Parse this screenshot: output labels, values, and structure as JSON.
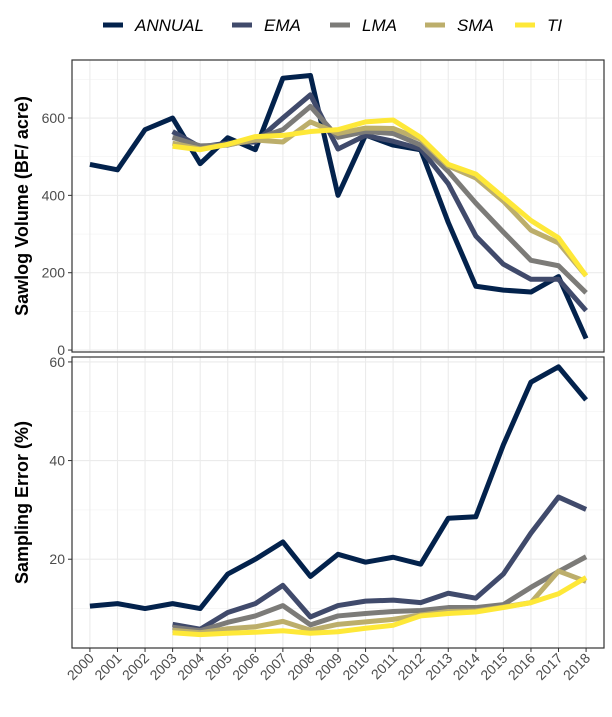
{
  "chart_data": {
    "type": "line",
    "x": [
      2000,
      2001,
      2002,
      2003,
      2004,
      2005,
      2006,
      2007,
      2008,
      2009,
      2010,
      2011,
      2012,
      2013,
      2014,
      2015,
      2016,
      2017,
      2018
    ],
    "legend": {
      "position": "top",
      "items": [
        {
          "name": "ANNUAL",
          "color": "#03224c"
        },
        {
          "name": "EMA",
          "color": "#404a6b"
        },
        {
          "name": "LMA",
          "color": "#7c7b78"
        },
        {
          "name": "SMA",
          "color": "#bcae6b"
        },
        {
          "name": "TI",
          "color": "#fee838"
        }
      ]
    },
    "grid": true,
    "panels": [
      {
        "ylabel": "Sawlog Volume (BF/ acre)",
        "ylim": [
          -5,
          750
        ],
        "yticks": [
          0,
          200,
          400,
          600
        ],
        "series": [
          {
            "name": "ANNUAL",
            "color": "#03224c",
            "values": [
              480,
              466,
              570,
              600,
              482,
              549,
              518,
              703,
              710,
              400,
              556,
              530,
              518,
              330,
              165,
              155,
              150,
              190,
              30
            ]
          },
          {
            "name": "EMA",
            "color": "#404a6b",
            "values": [
              null,
              null,
              null,
              565,
              525,
              535,
              538,
              600,
              660,
              520,
              555,
              540,
              520,
              430,
              295,
              222,
              183,
              183,
              102
            ]
          },
          {
            "name": "LMA",
            "color": "#7c7b78",
            "values": [
              null,
              null,
              null,
              550,
              528,
              530,
              545,
              570,
              630,
              550,
              565,
              560,
              530,
              462,
              380,
              305,
              232,
              218,
              148
            ]
          },
          {
            "name": "SMA",
            "color": "#bcae6b",
            "values": [
              null,
              null,
              null,
              535,
              520,
              531,
              543,
              538,
              590,
              560,
              574,
              573,
              545,
              476,
              445,
              385,
              310,
              277,
              192
            ]
          },
          {
            "name": "TI",
            "color": "#fee838",
            "values": [
              null,
              null,
              null,
              527,
              518,
              532,
              552,
              555,
              565,
              570,
              590,
              595,
              550,
              480,
              455,
              395,
              335,
              290,
              192
            ]
          }
        ]
      },
      {
        "ylabel": "Sampling Error (%)",
        "ylim": [
          2,
          61
        ],
        "yticks": [
          20,
          40,
          60
        ],
        "series": [
          {
            "name": "ANNUAL",
            "color": "#03224c",
            "values": [
              10.5,
              11,
              10,
              11,
              10,
              17,
              20,
              23.5,
              16.5,
              21,
              19.4,
              20.4,
              19,
              28.3,
              28.6,
              43.2,
              55.9,
              59,
              52.3
            ]
          },
          {
            "name": "EMA",
            "color": "#404a6b",
            "values": [
              null,
              null,
              null,
              6.8,
              5.8,
              9.2,
              11,
              14.7,
              8.3,
              10.6,
              11.5,
              11.7,
              11.2,
              13.1,
              12.1,
              17,
              25.3,
              32.6,
              30.1
            ]
          },
          {
            "name": "LMA",
            "color": "#7c7b78",
            "values": [
              null,
              null,
              null,
              6.2,
              5.5,
              7.2,
              8.5,
              10.6,
              6.7,
              8.5,
              9,
              9.4,
              9.6,
              10.2,
              10.2,
              10.8,
              14.3,
              17.5,
              20.5
            ]
          },
          {
            "name": "SMA",
            "color": "#bcae6b",
            "values": [
              null,
              null,
              null,
              5.6,
              5.1,
              5.9,
              6.3,
              7.4,
              5.6,
              6.8,
              7.3,
              7.8,
              8.7,
              9.4,
              9.5,
              10.3,
              11.2,
              17.6,
              15.5
            ]
          },
          {
            "name": "TI",
            "color": "#fee838",
            "values": [
              null,
              null,
              null,
              5.1,
              4.7,
              5,
              5.2,
              5.5,
              5,
              5.3,
              6,
              6.6,
              8.5,
              9,
              9.3,
              10.2,
              11.2,
              13,
              16.3
            ]
          }
        ]
      }
    ]
  }
}
